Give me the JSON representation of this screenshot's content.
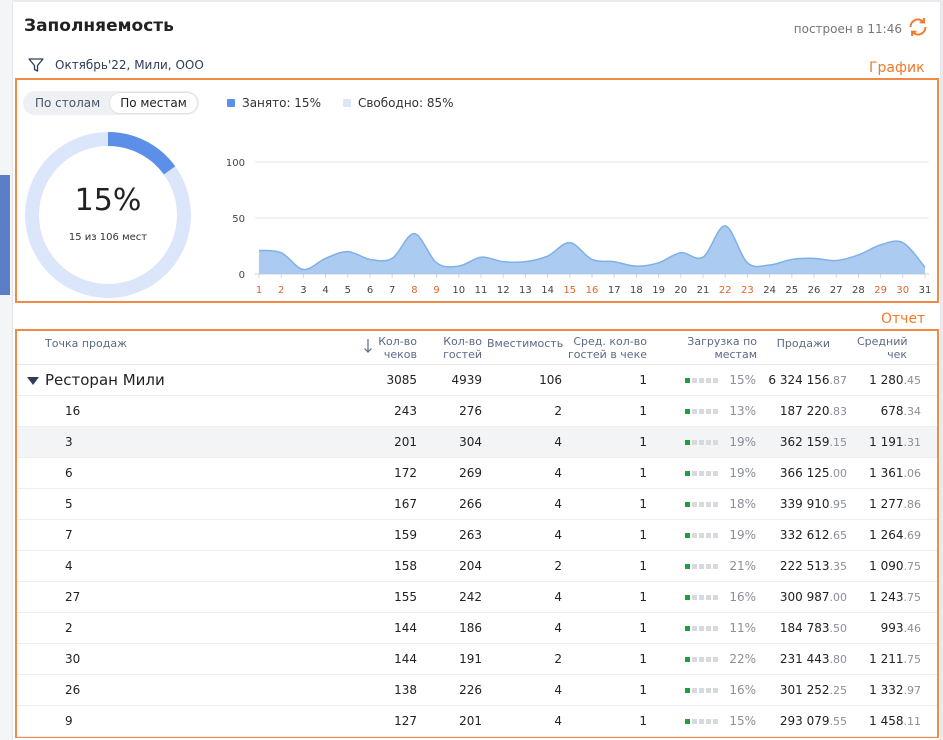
{
  "header": {
    "title": "Заполняемость",
    "built_at": "построен в 11:46"
  },
  "filter": {
    "text": "Октябрь'22, Мили, ООО"
  },
  "annotations": {
    "chart": "График",
    "report": "Отчет"
  },
  "chart": {
    "toggle": [
      "По столам",
      "По местам"
    ],
    "active_toggle": 1,
    "legend": [
      {
        "label": "Занято: 15%",
        "color": "#5b8fe8"
      },
      {
        "label": "Свободно: 85%",
        "color": "#dbe6fb"
      }
    ],
    "donut": {
      "value": "15%",
      "sub": "15 из 106 мест",
      "fraction": 0.15,
      "busy_color": "#5b8fe8",
      "free_color": "#dbe6fb"
    }
  },
  "chart_data": {
    "type": "area",
    "x": [
      1,
      2,
      3,
      4,
      5,
      6,
      7,
      8,
      9,
      10,
      11,
      12,
      13,
      14,
      15,
      16,
      17,
      18,
      19,
      20,
      21,
      22,
      23,
      24,
      25,
      26,
      27,
      28,
      29,
      30,
      31
    ],
    "values": [
      21,
      19,
      4,
      14,
      20,
      13,
      14,
      36,
      10,
      7,
      15,
      11,
      11,
      16,
      28,
      13,
      11,
      7,
      10,
      19,
      15,
      43,
      10,
      8,
      13,
      14,
      12,
      17,
      26,
      28,
      6
    ],
    "weekend_days": [
      1,
      2,
      8,
      9,
      15,
      16,
      22,
      23,
      29,
      30
    ],
    "yticks": [
      0,
      50,
      100
    ],
    "ylim": [
      0,
      100
    ],
    "fill_color": "#9cc2ee",
    "line_color": "#7fb0e8",
    "weekend_color": "#e0662a",
    "weekday_color": "#444444"
  },
  "table": {
    "headers": {
      "point": "Точка продаж",
      "checks": [
        "Кол-во",
        "чеков"
      ],
      "guests": [
        "Кол-во",
        "гостей"
      ],
      "capacity": "Вместимость",
      "avg_guests": [
        "Сред. кол-во",
        "гостей в чеке"
      ],
      "load": [
        "Загрузка по",
        "местам"
      ],
      "sales": "Продажи",
      "avg_check": [
        "Средний",
        "чек"
      ]
    },
    "rows": [
      {
        "name": "Ресторан Мили",
        "total": true,
        "checks": "3085",
        "guests": "4939",
        "capacity": "106",
        "avg": "1",
        "load": "15%",
        "load_level": 1,
        "sales": "6 324 156",
        "sales_dec": ".87",
        "avgcheck": "1 280",
        "avgcheck_dec": ".45"
      },
      {
        "name": "16",
        "checks": "243",
        "guests": "276",
        "capacity": "2",
        "avg": "1",
        "load": "13%",
        "load_level": 1,
        "sales": "187 220",
        "sales_dec": ".83",
        "avgcheck": "678",
        "avgcheck_dec": ".34"
      },
      {
        "name": "3",
        "checks": "201",
        "guests": "304",
        "capacity": "4",
        "avg": "1",
        "load": "19%",
        "load_level": 1,
        "sales": "362 159",
        "sales_dec": ".15",
        "avgcheck": "1 191",
        "avgcheck_dec": ".31"
      },
      {
        "name": "6",
        "checks": "172",
        "guests": "269",
        "capacity": "4",
        "avg": "1",
        "load": "19%",
        "load_level": 1,
        "sales": "366 125",
        "sales_dec": ".00",
        "avgcheck": "1 361",
        "avgcheck_dec": ".06"
      },
      {
        "name": "5",
        "checks": "167",
        "guests": "266",
        "capacity": "4",
        "avg": "1",
        "load": "18%",
        "load_level": 1,
        "sales": "339 910",
        "sales_dec": ".95",
        "avgcheck": "1 277",
        "avgcheck_dec": ".86"
      },
      {
        "name": "7",
        "checks": "159",
        "guests": "263",
        "capacity": "4",
        "avg": "1",
        "load": "19%",
        "load_level": 1,
        "sales": "332 612",
        "sales_dec": ".65",
        "avgcheck": "1 264",
        "avgcheck_dec": ".69"
      },
      {
        "name": "4",
        "checks": "158",
        "guests": "204",
        "capacity": "2",
        "avg": "1",
        "load": "21%",
        "load_level": 1,
        "sales": "222 513",
        "sales_dec": ".35",
        "avgcheck": "1 090",
        "avgcheck_dec": ".75"
      },
      {
        "name": "27",
        "checks": "155",
        "guests": "242",
        "capacity": "4",
        "avg": "1",
        "load": "16%",
        "load_level": 1,
        "sales": "300 987",
        "sales_dec": ".00",
        "avgcheck": "1 243",
        "avgcheck_dec": ".75"
      },
      {
        "name": "2",
        "checks": "144",
        "guests": "186",
        "capacity": "4",
        "avg": "1",
        "load": "11%",
        "load_level": 1,
        "sales": "184 783",
        "sales_dec": ".50",
        "avgcheck": "993",
        "avgcheck_dec": ".46"
      },
      {
        "name": "30",
        "checks": "144",
        "guests": "191",
        "capacity": "2",
        "avg": "1",
        "load": "22%",
        "load_level": 1,
        "sales": "231 443",
        "sales_dec": ".80",
        "avgcheck": "1 211",
        "avgcheck_dec": ".75"
      },
      {
        "name": "26",
        "checks": "138",
        "guests": "226",
        "capacity": "4",
        "avg": "1",
        "load": "16%",
        "load_level": 1,
        "sales": "301 252",
        "sales_dec": ".25",
        "avgcheck": "1 332",
        "avgcheck_dec": ".97"
      },
      {
        "name": "9",
        "checks": "127",
        "guests": "201",
        "capacity": "4",
        "avg": "1",
        "load": "15%",
        "load_level": 1,
        "sales": "293 079",
        "sales_dec": ".55",
        "avgcheck": "1 458",
        "avgcheck_dec": ".11"
      }
    ]
  }
}
